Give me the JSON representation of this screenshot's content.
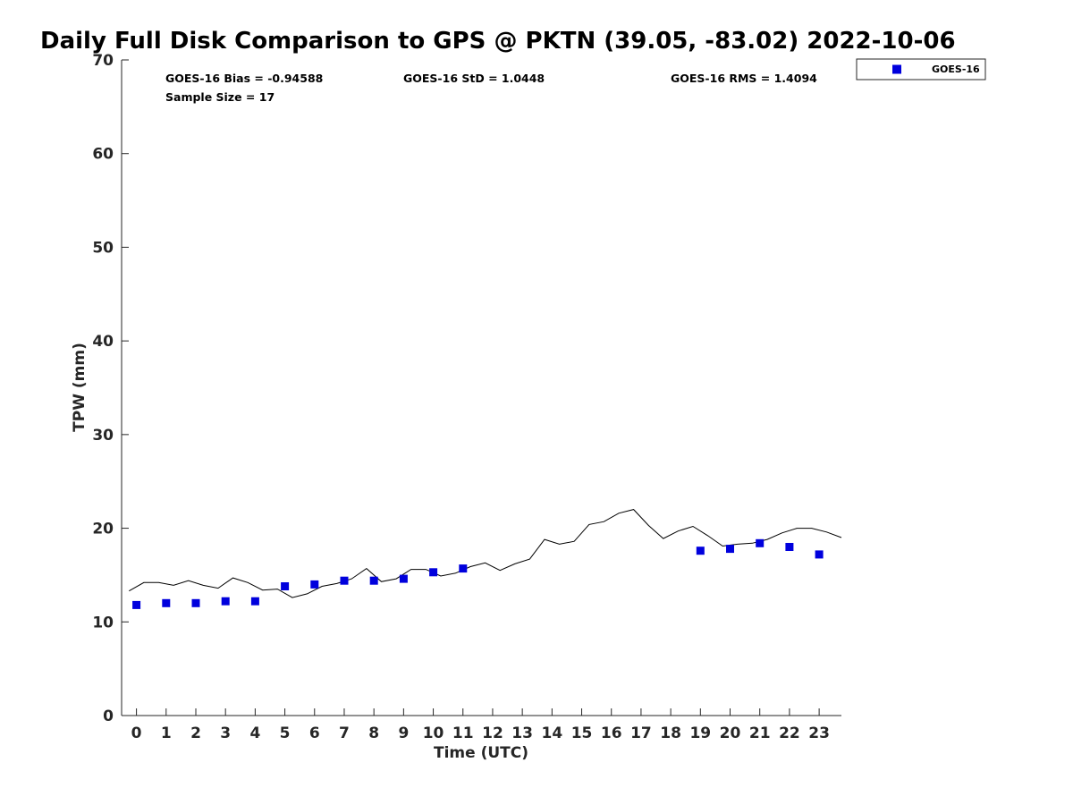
{
  "chart_data": {
    "type": "scatter",
    "title": "Daily Full Disk Comparison to GPS @ PKTN (39.05, -83.02) 2022-10-06",
    "xlabel": "Time (UTC)",
    "ylabel": "TPW (mm)",
    "xlim": [
      -0.5,
      23.75
    ],
    "ylim": [
      0,
      70
    ],
    "x_ticks": [
      0,
      1,
      2,
      3,
      4,
      5,
      6,
      7,
      8,
      9,
      10,
      11,
      12,
      13,
      14,
      15,
      16,
      17,
      18,
      19,
      20,
      21,
      22,
      23
    ],
    "y_ticks": [
      0,
      10,
      20,
      30,
      40,
      50,
      60,
      70
    ],
    "grid": false,
    "legend": {
      "position": "top-right",
      "entries": [
        "GOES-16"
      ]
    },
    "stats": {
      "bias": "GOES-16 Bias = -0.94588",
      "std": "GOES-16 StD = 1.0448",
      "rms": "GOES-16 RMS = 1.4094",
      "sample": "Sample Size = 17"
    },
    "series": [
      {
        "name": "GOES-16",
        "kind": "marker",
        "color": "#0000dd",
        "points": [
          [
            0,
            11.8
          ],
          [
            1,
            12.0
          ],
          [
            2,
            12.0
          ],
          [
            3,
            12.2
          ],
          [
            4,
            12.2
          ],
          [
            5,
            13.8
          ],
          [
            6,
            14.0
          ],
          [
            7,
            14.4
          ],
          [
            8,
            14.4
          ],
          [
            9,
            14.6
          ],
          [
            10,
            15.3
          ],
          [
            11,
            15.7
          ],
          [
            19,
            17.6
          ],
          [
            20,
            17.8
          ],
          [
            21,
            18.4
          ],
          [
            22,
            18.0
          ],
          [
            23,
            17.2
          ]
        ]
      },
      {
        "kind": "line",
        "color": "#000000",
        "points": [
          [
            -0.25,
            13.3
          ],
          [
            0.25,
            14.2
          ],
          [
            0.75,
            14.2
          ],
          [
            1.25,
            13.9
          ],
          [
            1.75,
            14.4
          ],
          [
            2.25,
            13.9
          ],
          [
            2.75,
            13.6
          ],
          [
            3.25,
            14.7
          ],
          [
            3.75,
            14.2
          ],
          [
            4.25,
            13.4
          ],
          [
            4.75,
            13.5
          ],
          [
            5.25,
            12.6
          ],
          [
            5.75,
            13.0
          ],
          [
            6.25,
            13.8
          ],
          [
            6.75,
            14.1
          ],
          [
            7.25,
            14.6
          ],
          [
            7.75,
            15.7
          ],
          [
            8.25,
            14.3
          ],
          [
            8.75,
            14.6
          ],
          [
            9.25,
            15.6
          ],
          [
            9.75,
            15.6
          ],
          [
            10.25,
            14.9
          ],
          [
            10.75,
            15.2
          ],
          [
            11.25,
            15.9
          ],
          [
            11.75,
            16.3
          ],
          [
            12.25,
            15.5
          ],
          [
            12.75,
            16.2
          ],
          [
            13.25,
            16.7
          ],
          [
            13.75,
            18.8
          ],
          [
            14.25,
            18.3
          ],
          [
            14.75,
            18.6
          ],
          [
            15.25,
            20.4
          ],
          [
            15.75,
            20.7
          ],
          [
            16.25,
            21.6
          ],
          [
            16.75,
            22.0
          ],
          [
            17.25,
            20.3
          ],
          [
            17.75,
            18.9
          ],
          [
            18.25,
            19.7
          ],
          [
            18.75,
            20.2
          ],
          [
            19.25,
            19.2
          ],
          [
            19.75,
            18.1
          ],
          [
            20.25,
            18.3
          ],
          [
            20.75,
            18.4
          ],
          [
            21.25,
            18.8
          ],
          [
            21.75,
            19.5
          ],
          [
            22.25,
            20.0
          ],
          [
            22.75,
            20.0
          ],
          [
            23.25,
            19.6
          ],
          [
            23.75,
            19.0
          ]
        ]
      }
    ]
  }
}
